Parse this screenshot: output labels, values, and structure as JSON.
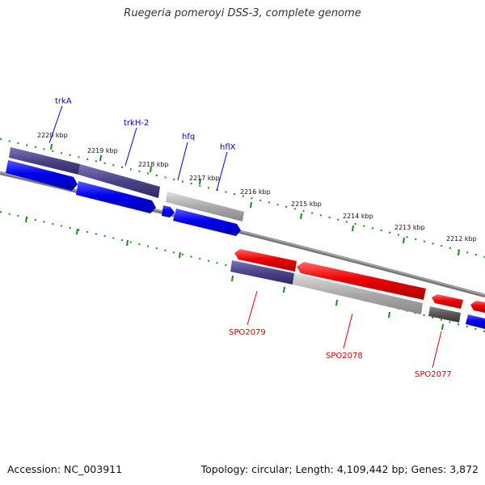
{
  "title": "Ruegeria pomeroyi DSS-3, complete genome",
  "footer": {
    "accession": "Accession: NC_003911",
    "summary": "Topology: circular; Length: 4,109,442 bp; Genes: 3,872"
  },
  "colors": {
    "cds_forward": "#0000ee",
    "cds_reverse": "#ee0000",
    "cog_purple": "#4a4488",
    "gray_gene": "#a8a8a8",
    "dark_gray_gene": "#555555",
    "tick_green": "#1a8a1a",
    "backbone": "#777777"
  },
  "scale_labels": [
    "2220 kbp",
    "2219 kbp",
    "2218 kbp",
    "2217 kbp",
    "2216 kbp",
    "2215 kbp",
    "2214 kbp",
    "2213 kbp",
    "2212 kbp"
  ],
  "gene_labels_forward": [
    "trkA",
    "trkH-2",
    "hfq",
    "hflX"
  ],
  "gene_labels_reverse": [
    "SPO2079",
    "SPO2078",
    "SPO2077"
  ]
}
